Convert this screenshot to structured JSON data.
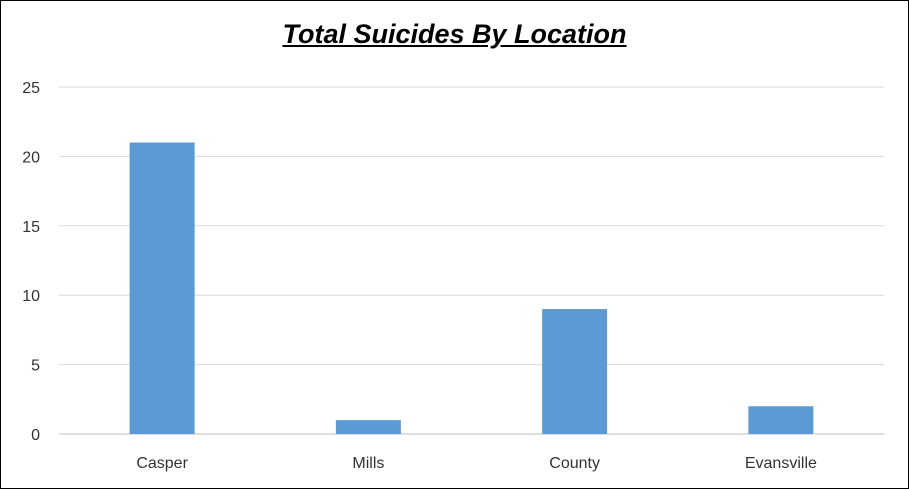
{
  "chart_data": {
    "type": "bar",
    "title": "Total Suicides By Location",
    "categories": [
      "Casper",
      "Mills",
      "County",
      "Evansville"
    ],
    "values": [
      21,
      1,
      9,
      2
    ],
    "ylim": [
      0,
      25
    ],
    "yticks": [
      0,
      5,
      10,
      15,
      20,
      25
    ],
    "xlabel": "",
    "ylabel": "",
    "grid": true,
    "bar_color": "#5b9bd5"
  }
}
